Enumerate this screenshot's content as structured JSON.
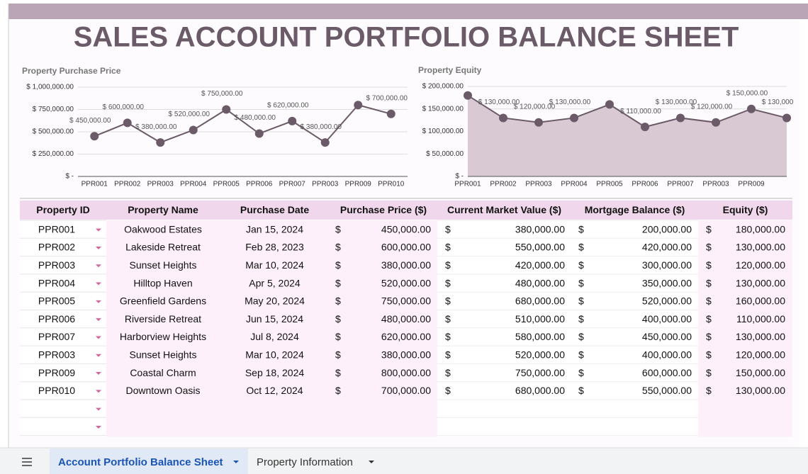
{
  "title": "SALES ACCOUNT PORTFOLIO BALANCE SHEET",
  "chart_data": [
    {
      "type": "line",
      "title": "Property Purchase Price",
      "categories": [
        "PPR001",
        "PPR002",
        "PPR003",
        "PPR004",
        "PPR005",
        "PPR006",
        "PPR007",
        "PPR003",
        "PPR009",
        "PPR010"
      ],
      "values": [
        450000,
        600000,
        380000,
        520000,
        750000,
        480000,
        620000,
        380000,
        800000,
        700000
      ],
      "value_labels": [
        "$ 450,000.00",
        "$ 600,000.00",
        "$ 380,000.00",
        "$ 520,000.00",
        "$ 750,000.00",
        "$ 480,000.00",
        "$ 620,000.00",
        "$ 380,000.00",
        null,
        "$ 700,000.00"
      ],
      "color": "#6b5a68",
      "ylim": [
        0,
        1000000
      ],
      "yticks": [
        {
          "value": 0,
          "label": "$ -"
        },
        {
          "value": 250000,
          "label": "$ 250,000.00"
        },
        {
          "value": 500000,
          "label": "$ 500,000.00"
        },
        {
          "value": 750000,
          "label": "$ 750,000.00"
        },
        {
          "value": 1000000,
          "label": "$ 1,000,000.00"
        }
      ],
      "grid": true
    },
    {
      "type": "area",
      "title": "Property  Equity",
      "categories": [
        "PPR001",
        "PPR002",
        "PPR003",
        "PPR004",
        "PPR005",
        "PPR006",
        "PPR007",
        "PPR003",
        "PPR009",
        null
      ],
      "values": [
        180000,
        130000,
        120000,
        130000,
        160000,
        110000,
        130000,
        120000,
        150000,
        130000
      ],
      "value_labels": [
        null,
        "$ 130,000.00",
        "$ 120,000.00",
        "$ 130,000.00",
        null,
        "$ 110,000.00",
        "$ 130,000.00",
        "$ 120,000.00",
        "$ 150,000.00",
        "$ 130,000.00"
      ],
      "color": "#6b5a68",
      "fill": "#d8c9d3",
      "ylim": [
        0,
        200000
      ],
      "yticks": [
        {
          "value": 0,
          "label": "$ -"
        },
        {
          "value": 50000,
          "label": "$ 50,000.00"
        },
        {
          "value": 100000,
          "label": "$ 100,000.00"
        },
        {
          "value": 150000,
          "label": "$ 150,000.00"
        },
        {
          "value": 200000,
          "label": "$ 200,000.00"
        }
      ],
      "grid": true
    }
  ],
  "table": {
    "currency": "$",
    "header": [
      "Property ID",
      "Property Name",
      "Purchase Date",
      "Purchase Price ($)",
      "Current Market Value ($)",
      "Mortgage Balance ($)",
      "Equity ($)"
    ],
    "rows": [
      [
        "PPR001",
        "Oakwood Estates",
        "Jan 15, 2024",
        "450,000.00",
        "380,000.00",
        "200,000.00",
        "180,000.00"
      ],
      [
        "PPR002",
        "Lakeside Retreat",
        "Feb 28, 2023",
        "600,000.00",
        "550,000.00",
        "420,000.00",
        "130,000.00"
      ],
      [
        "PPR003",
        "Sunset Heights",
        "Mar 10, 2024",
        "380,000.00",
        "420,000.00",
        "300,000.00",
        "120,000.00"
      ],
      [
        "PPR004",
        "Hilltop Haven",
        "Apr 5, 2024",
        "520,000.00",
        "480,000.00",
        "350,000.00",
        "130,000.00"
      ],
      [
        "PPR005",
        "Greenfield Gardens",
        "May 20, 2024",
        "750,000.00",
        "680,000.00",
        "520,000.00",
        "160,000.00"
      ],
      [
        "PPR006",
        "Riverside Retreat",
        "Jun 15, 2024",
        "480,000.00",
        "510,000.00",
        "400,000.00",
        "110,000.00"
      ],
      [
        "PPR007",
        "Harborview Heights",
        "Jul 8, 2024",
        "620,000.00",
        "580,000.00",
        "450,000.00",
        "130,000.00"
      ],
      [
        "PPR003",
        "Sunset Heights",
        "Mar 10, 2024",
        "380,000.00",
        "520,000.00",
        "400,000.00",
        "120,000.00"
      ],
      [
        "PPR009",
        "Coastal Charm",
        "Sep 18, 2024",
        "800,000.00",
        "750,000.00",
        "600,000.00",
        "150,000.00"
      ],
      [
        "PPR010",
        "Downtown Oasis",
        "Oct 12, 2024",
        "700,000.00",
        "680,000.00",
        "550,000.00",
        "130,000.00"
      ]
    ]
  },
  "tabs": [
    "Account Portfolio Balance Sheet",
    "Property Information"
  ]
}
